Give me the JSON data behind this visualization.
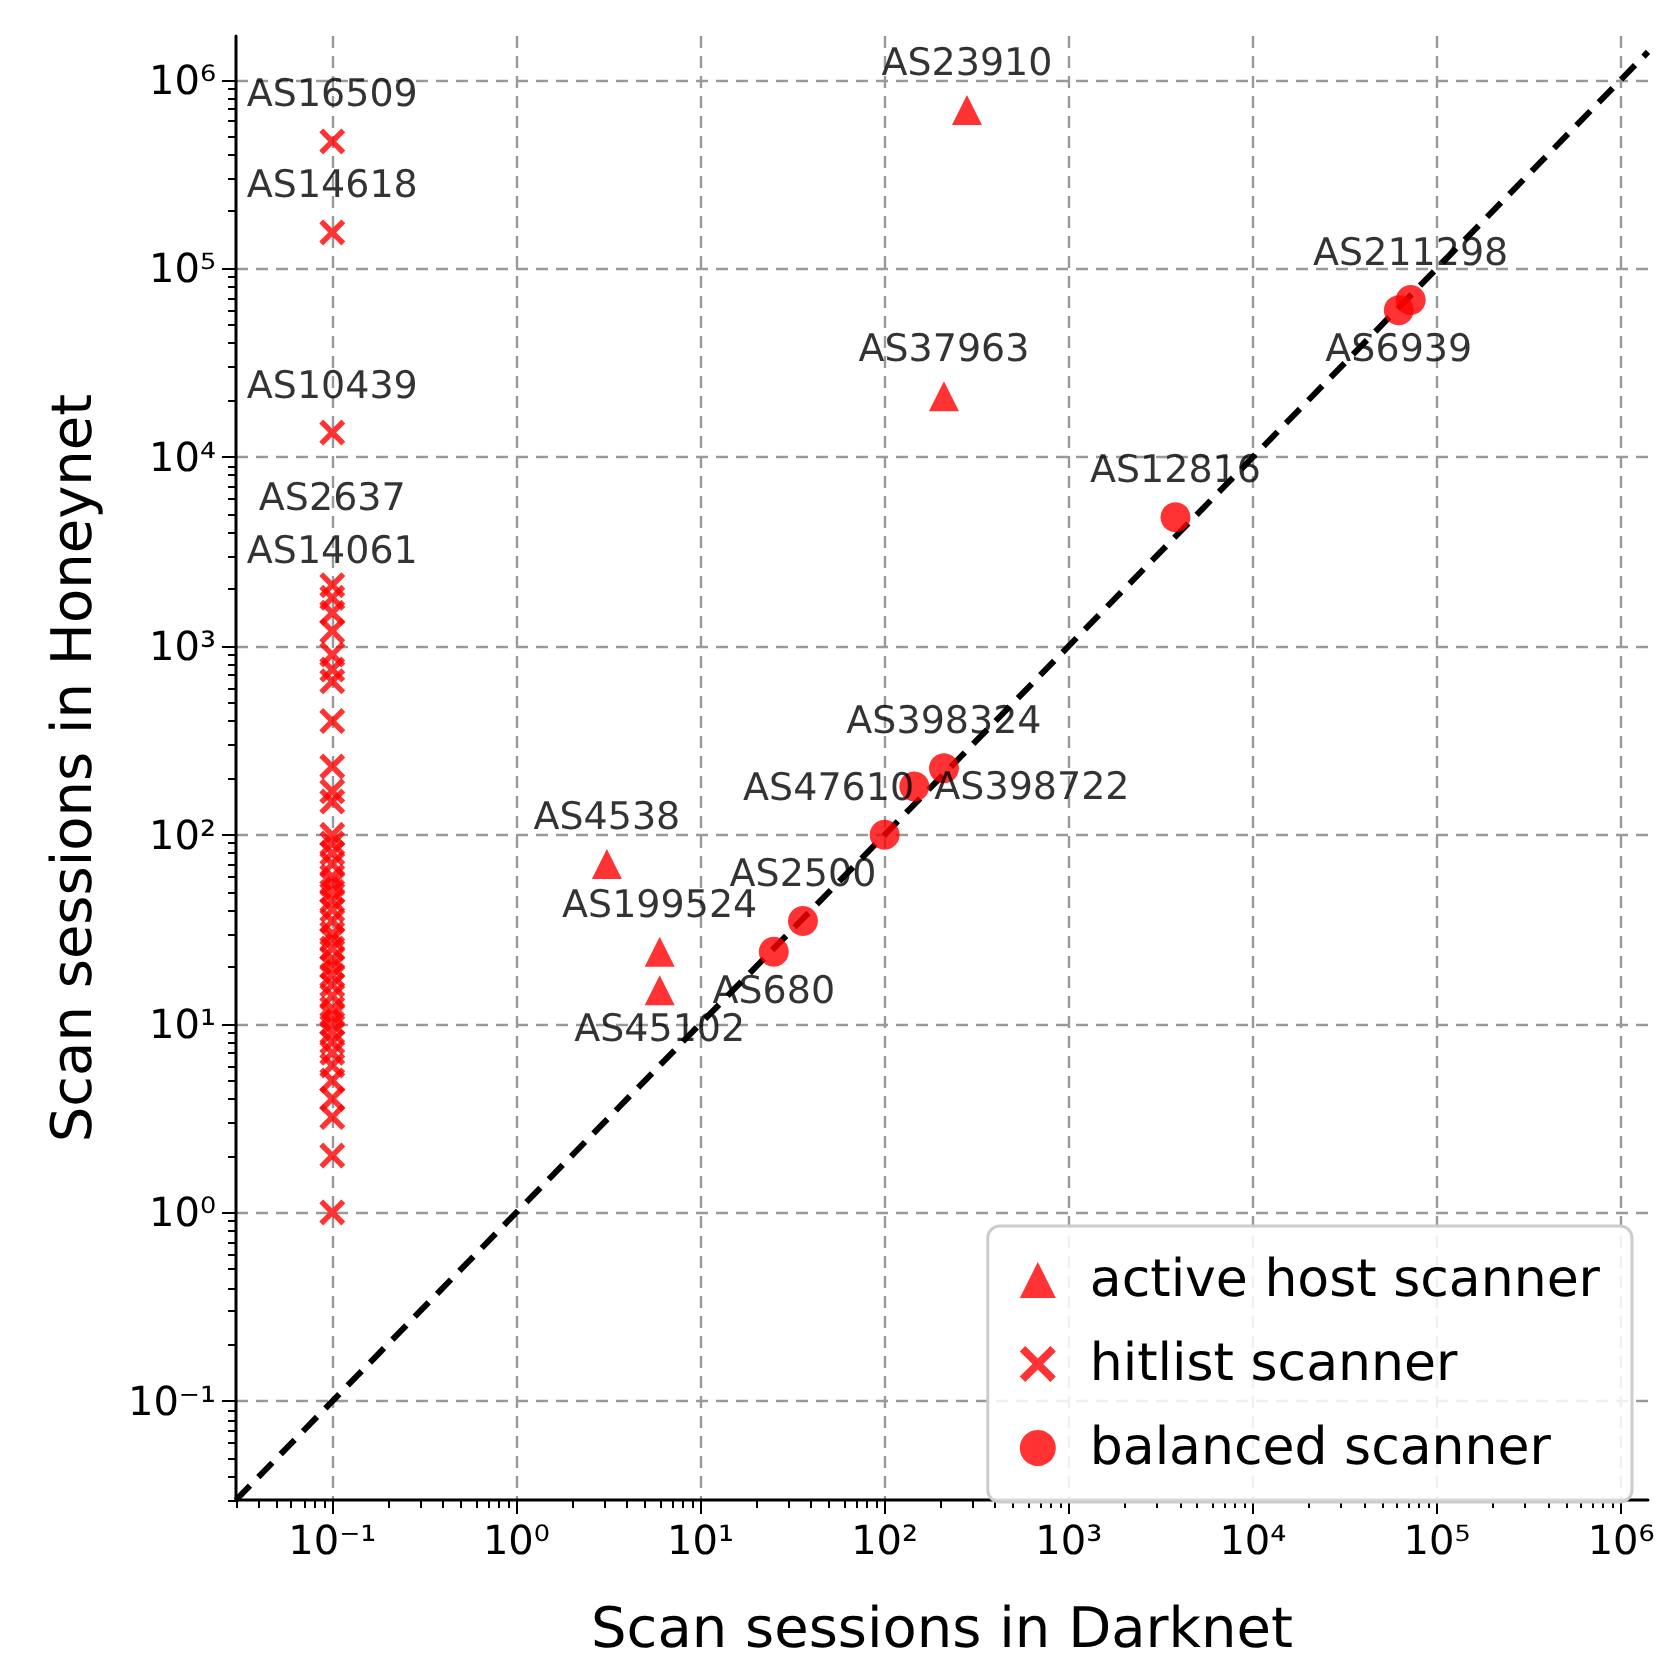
{
  "chart_data": {
    "type": "scatter",
    "xlabel": "Scan sessions in Darknet",
    "ylabel": "Scan sessions in Honeynet",
    "log": "xy",
    "grid": true,
    "legend": "bottom right",
    "xlim": [
      0.03,
      1400000
    ],
    "ylim": [
      0.03,
      1700000
    ],
    "xticks": [
      {
        "value": 0.1,
        "label": "10⁻¹"
      },
      {
        "value": 1,
        "label": "10⁰"
      },
      {
        "value": 10,
        "label": "10¹"
      },
      {
        "value": 100,
        "label": "10²"
      },
      {
        "value": 1000,
        "label": "10³"
      },
      {
        "value": 10000,
        "label": "10⁴"
      },
      {
        "value": 100000,
        "label": "10⁵"
      },
      {
        "value": 1000000,
        "label": "10⁶"
      }
    ],
    "yticks": [
      {
        "value": 0.1,
        "label": "10⁻¹"
      },
      {
        "value": 1,
        "label": "10⁰"
      },
      {
        "value": 10,
        "label": "10¹"
      },
      {
        "value": 100,
        "label": "10²"
      },
      {
        "value": 1000,
        "label": "10³"
      },
      {
        "value": 10000,
        "label": "10⁴"
      },
      {
        "value": 100000,
        "label": "10⁵"
      },
      {
        "value": 1000000,
        "label": "10⁶"
      }
    ],
    "series": [
      {
        "name": "active host scanner",
        "marker": "triangle",
        "color": "#ff0000",
        "x": [
          280,
          210,
          3.1,
          6,
          6
        ],
        "values": [
          690000,
          21000,
          70,
          24,
          15
        ]
      },
      {
        "name": "hitlist scanner",
        "marker": "cross",
        "color": "#ff0000",
        "x": [
          0.1,
          0.1,
          0.1,
          0.1,
          0.1,
          0.1,
          0.1,
          0.1,
          0.1,
          0.1,
          0.1,
          0.1,
          0.1,
          0.1,
          0.1,
          0.1,
          0.1,
          0.1,
          0.1,
          0.1,
          0.1,
          0.1,
          0.1,
          0.1,
          0.1,
          0.1,
          0.1,
          0.1,
          0.1,
          0.1,
          0.1,
          0.1,
          0.1,
          0.1,
          0.1,
          0.1,
          0.1,
          0.1,
          0.1,
          0.1,
          0.1,
          0.1,
          0.1,
          0.1
        ],
        "values": [
          470000,
          155000,
          13500,
          2100,
          1800,
          1500,
          1200,
          900,
          750,
          650,
          400,
          230,
          170,
          150,
          100,
          90,
          80,
          70,
          60,
          55,
          50,
          45,
          40,
          35,
          30,
          28,
          25,
          22,
          20,
          18,
          16,
          14,
          12,
          11,
          10,
          9,
          8,
          7,
          6,
          5,
          4,
          3.2,
          2,
          1
        ]
      },
      {
        "name": "balanced scanner",
        "marker": "circle",
        "color": "#ff0000",
        "x": [
          72000,
          62000,
          3800,
          210,
          145,
          100,
          36,
          25
        ],
        "values": [
          68000,
          60000,
          4800,
          225,
          180,
          100,
          35,
          24
        ]
      },
      {
        "type": "line",
        "color": "#000000",
        "line_style": "dashed",
        "marker": "none",
        "x": [
          0.03,
          1400000
        ],
        "values": [
          0.03,
          1400000
        ]
      }
    ],
    "annotations": [
      {
        "text": "AS23910",
        "x": 280,
        "y": 690000
      },
      {
        "text": "AS37963",
        "x": 210,
        "y": 21000
      },
      {
        "text": "AS4538",
        "x": 3.1,
        "y": 70
      },
      {
        "text": "AS199524",
        "x": 6,
        "y": 24
      },
      {
        "text": "AS45102",
        "x": 6,
        "y": 15
      },
      {
        "text": "AS16509",
        "x": 0.1,
        "y": 470000
      },
      {
        "text": "AS14618",
        "x": 0.1,
        "y": 155000
      },
      {
        "text": "AS10439",
        "x": 0.1,
        "y": 13500
      },
      {
        "text": "AS2637",
        "x": 0.1,
        "y": 2100
      },
      {
        "text": "AS14061",
        "x": 0.1,
        "y": 1800
      },
      {
        "text": "AS211298",
        "x": 72000,
        "y": 68000
      },
      {
        "text": "AS6939",
        "x": 62000,
        "y": 60000
      },
      {
        "text": "AS12816",
        "x": 3800,
        "y": 4800
      },
      {
        "text": "AS398324",
        "x": 210,
        "y": 225
      },
      {
        "text": "AS398722",
        "x": 145,
        "y": 180
      },
      {
        "text": "AS47610",
        "x": 100,
        "y": 100
      },
      {
        "text": "AS2500",
        "x": 36,
        "y": 35
      },
      {
        "text": "AS680",
        "x": 25,
        "y": 24
      }
    ]
  }
}
